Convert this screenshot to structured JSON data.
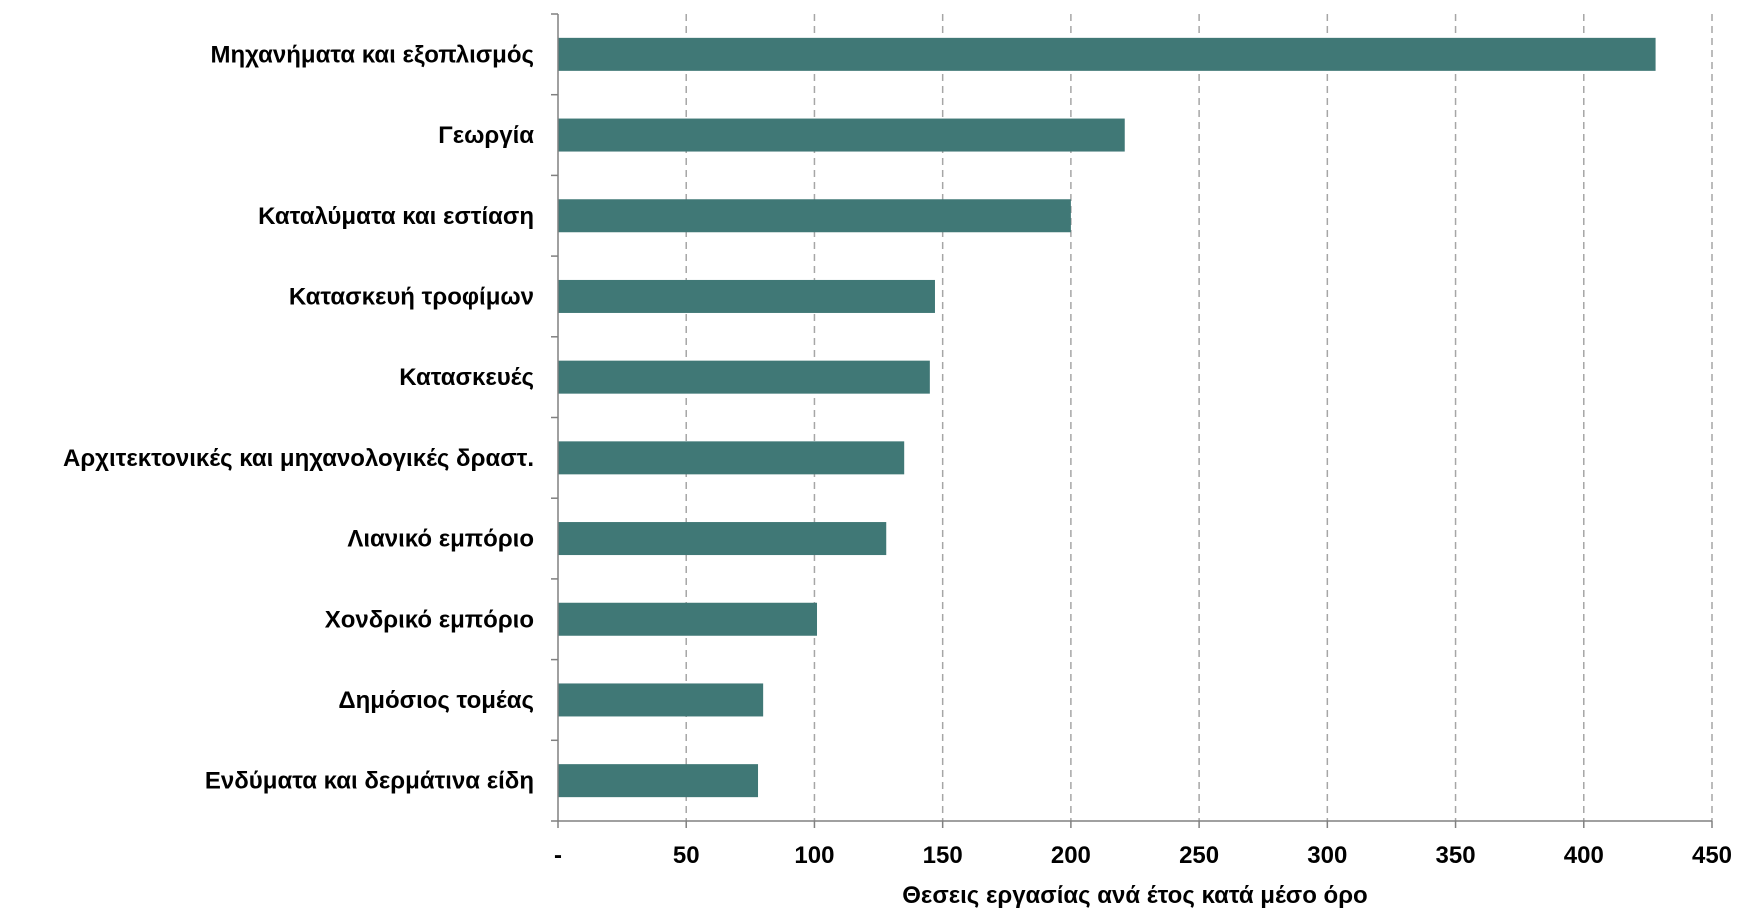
{
  "chart_data": {
    "type": "bar",
    "orientation": "horizontal",
    "categories": [
      "Μηχανήματα και εξοπλισμός",
      "Γεωργία",
      "Καταλύματα και εστίαση",
      "Κατασκευή τροφίμων",
      "Κατασκευές",
      "Αρχιτεκτονικές και μηχανολογικές δραστ.",
      "Λιανικό εμπόριο",
      "Χονδρικό εμπόριο",
      "Δημόσιος τομέας",
      "Ενδύματα και δερμάτινα είδη"
    ],
    "values": [
      428,
      221,
      200,
      147,
      145,
      135,
      128,
      101,
      80,
      78
    ],
    "xlim": [
      0,
      450
    ],
    "x_ticks": [
      0,
      50,
      100,
      150,
      200,
      250,
      300,
      350,
      400,
      450
    ],
    "x_tick_labels": [
      "-",
      "50",
      "100",
      "150",
      "200",
      "250",
      "300",
      "350",
      "400",
      "450"
    ],
    "xlabel": "Θεσεις εργασίας ανά έτος κατά μέσο όρο",
    "title": "",
    "grid": "vertical dashed",
    "bar_color": "#407876",
    "grid_color": "#a6a6a6",
    "axis_color": "#808080"
  }
}
